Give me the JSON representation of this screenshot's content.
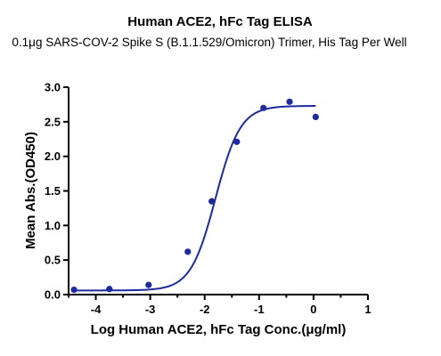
{
  "chart_data": {
    "type": "scatter",
    "title": "Human ACE2, hFc Tag ELISA",
    "subtitle": "0.1μg SARS-COV-2 Spike S (B.1.1.529/Omicron) Trimer, His Tag Per Well",
    "xlabel": "Log Human ACE2, hFc Tag Conc.(μg/ml)",
    "ylabel": "Mean Abs.(OD450)",
    "xlim": [
      -4.5,
      1
    ],
    "ylim": [
      0,
      3.0
    ],
    "x_ticks": [
      "-4",
      "-3",
      "-2",
      "-1",
      "0",
      "1"
    ],
    "y_ticks": [
      "0.0",
      "0.5",
      "1.0",
      "1.5",
      "2.0",
      "2.5",
      "3.0"
    ],
    "grid": false,
    "color": "#1f2a9c",
    "series": [
      {
        "points": [
          {
            "x": -4.4,
            "y": 0.07
          },
          {
            "x": -3.75,
            "y": 0.08
          },
          {
            "x": -3.03,
            "y": 0.14
          },
          {
            "x": -2.31,
            "y": 0.62
          },
          {
            "x": -1.87,
            "y": 1.35
          },
          {
            "x": -1.41,
            "y": 2.21
          },
          {
            "x": -0.92,
            "y": 2.7
          },
          {
            "x": -0.44,
            "y": 2.79
          },
          {
            "x": 0.04,
            "y": 2.57
          }
        ],
        "fit": {
          "model": "4PL",
          "bottom": 0.06,
          "top": 2.73,
          "log_ec50": -1.8,
          "hill": 1.9
        }
      }
    ]
  }
}
